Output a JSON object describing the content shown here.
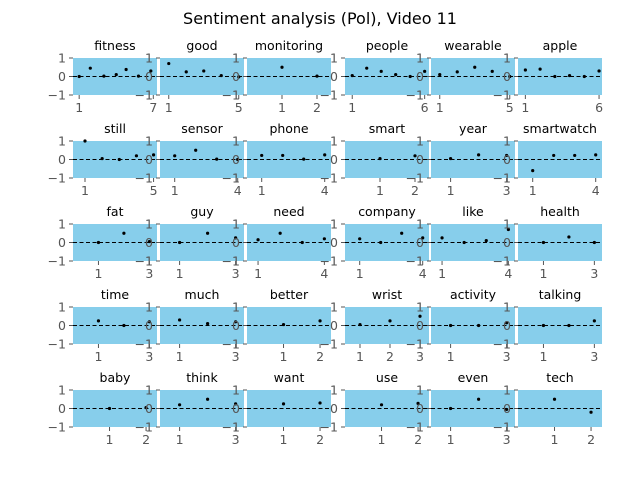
{
  "chart_data": {
    "type": "scatter",
    "title": "Sentiment analysis (Pol), Video 11",
    "ylim": [
      -1,
      1
    ],
    "yticks": [
      -1,
      0,
      1
    ],
    "reference_line": {
      "y": 0,
      "style": "dashed",
      "color": "#000000"
    },
    "colors": {
      "panel_background": "#87ceeb",
      "points": "#000000"
    },
    "grid": false,
    "panels": [
      {
        "title": "fitness",
        "xlim": [
          0.5,
          7.3
        ],
        "xticks": [
          1,
          7
        ],
        "points": [
          [
            1,
            0
          ],
          [
            1.9,
            0.45
          ],
          [
            3,
            0.02
          ],
          [
            4,
            0.1
          ],
          [
            4.8,
            0.38
          ],
          [
            5.8,
            0.02
          ],
          [
            6.8,
            0.3
          ]
        ]
      },
      {
        "title": "good",
        "xlim": [
          0.5,
          5.3
        ],
        "xticks": [
          1,
          5
        ],
        "points": [
          [
            1,
            0.7
          ],
          [
            2,
            0.25
          ],
          [
            3,
            0.3
          ],
          [
            4,
            0.05
          ],
          [
            5,
            -0.02
          ]
        ]
      },
      {
        "title": "monitoring",
        "xlim": [
          0,
          2.4
        ],
        "xticks": [
          1,
          2
        ],
        "points": [
          [
            1,
            0.5
          ],
          [
            2,
            0.02
          ]
        ]
      },
      {
        "title": "people",
        "xlim": [
          0.5,
          6.3
        ],
        "xticks": [
          1,
          6
        ],
        "points": [
          [
            1,
            0.05
          ],
          [
            2,
            0.45
          ],
          [
            3,
            0.28
          ],
          [
            4,
            0.1
          ],
          [
            5,
            0
          ],
          [
            6,
            0.28
          ]
        ]
      },
      {
        "title": "wearable",
        "xlim": [
          0.5,
          5.3
        ],
        "xticks": [
          1,
          5
        ],
        "points": [
          [
            1,
            0.1
          ],
          [
            2,
            0.25
          ],
          [
            3,
            0.5
          ],
          [
            4,
            0.28
          ],
          [
            5,
            0
          ]
        ]
      },
      {
        "title": "apple",
        "xlim": [
          0.5,
          6.2
        ],
        "xticks": [
          1,
          6
        ],
        "points": [
          [
            1,
            0.35
          ],
          [
            2,
            0.4
          ],
          [
            3,
            0
          ],
          [
            4,
            0.05
          ],
          [
            5,
            0
          ],
          [
            6,
            0.3
          ]
        ]
      },
      {
        "title": "still",
        "xlim": [
          0.3,
          5.2
        ],
        "xticks": [
          1,
          5
        ],
        "points": [
          [
            1,
            1
          ],
          [
            2,
            0.05
          ],
          [
            3,
            0
          ],
          [
            4,
            0.2
          ],
          [
            5,
            0.25
          ]
        ]
      },
      {
        "title": "sensor",
        "xlim": [
          0.3,
          4.3
        ],
        "xticks": [
          1,
          4
        ],
        "points": [
          [
            1,
            0.2
          ],
          [
            2,
            0.5
          ],
          [
            3,
            0.02
          ],
          [
            4,
            0
          ]
        ]
      },
      {
        "title": "phone",
        "xlim": [
          0.3,
          4.3
        ],
        "xticks": [
          1,
          4
        ],
        "points": [
          [
            1,
            0.22
          ],
          [
            2,
            0.22
          ],
          [
            3,
            0.02
          ],
          [
            4,
            0.25
          ]
        ]
      },
      {
        "title": "smart",
        "xlim": [
          0,
          2.4
        ],
        "xticks": [
          1,
          2
        ],
        "points": [
          [
            1,
            0.05
          ],
          [
            2,
            0.2
          ]
        ]
      },
      {
        "title": "year",
        "xlim": [
          0.3,
          3.3
        ],
        "xticks": [
          1,
          3
        ],
        "points": [
          [
            1,
            0.05
          ],
          [
            2,
            0.25
          ],
          [
            3,
            0.22
          ]
        ]
      },
      {
        "title": "smartwatch",
        "xlim": [
          0.3,
          4.3
        ],
        "xticks": [
          1,
          4
        ],
        "points": [
          [
            1,
            -0.6
          ],
          [
            2,
            0.22
          ],
          [
            3,
            0.22
          ],
          [
            4,
            0.25
          ]
        ]
      },
      {
        "title": "fat",
        "xlim": [
          0,
          3.3
        ],
        "xticks": [
          1,
          3
        ],
        "points": [
          [
            1,
            0
          ],
          [
            2,
            0.5
          ],
          [
            3,
            0.05
          ]
        ]
      },
      {
        "title": "guy",
        "xlim": [
          0.3,
          3.3
        ],
        "xticks": [
          1,
          3
        ],
        "points": [
          [
            1,
            0
          ],
          [
            2,
            0.5
          ],
          [
            3,
            0.25
          ]
        ]
      },
      {
        "title": "need",
        "xlim": [
          0.5,
          4.3
        ],
        "xticks": [
          1,
          4
        ],
        "points": [
          [
            1,
            0.15
          ],
          [
            2,
            0.5
          ],
          [
            3,
            0
          ],
          [
            4,
            0.2
          ]
        ]
      },
      {
        "title": "company",
        "xlim": [
          0.3,
          4.3
        ],
        "xticks": [
          1,
          4
        ],
        "points": [
          [
            1,
            0.2
          ],
          [
            2,
            0
          ],
          [
            3,
            0.5
          ],
          [
            4,
            0.25
          ]
        ]
      },
      {
        "title": "like",
        "xlim": [
          0.5,
          4.3
        ],
        "xticks": [
          1,
          4
        ],
        "points": [
          [
            1,
            0.25
          ],
          [
            2,
            0
          ],
          [
            3,
            0.1
          ],
          [
            4,
            0.7
          ]
        ]
      },
      {
        "title": "health",
        "xlim": [
          0,
          3.3
        ],
        "xticks": [
          1,
          3
        ],
        "points": [
          [
            1,
            0
          ],
          [
            2,
            0.3
          ],
          [
            3,
            0
          ]
        ]
      },
      {
        "title": "time",
        "xlim": [
          0,
          3.3
        ],
        "xticks": [
          1,
          3
        ],
        "points": [
          [
            1,
            0.25
          ],
          [
            2,
            0
          ],
          [
            3,
            0.2
          ]
        ]
      },
      {
        "title": "much",
        "xlim": [
          0.3,
          3.3
        ],
        "xticks": [
          1,
          3
        ],
        "points": [
          [
            1,
            0.3
          ],
          [
            2,
            0.1
          ],
          [
            3,
            0.2
          ]
        ]
      },
      {
        "title": "better",
        "xlim": [
          0,
          2.3
        ],
        "xticks": [
          1,
          2
        ],
        "points": [
          [
            1,
            0.05
          ],
          [
            2,
            0.25
          ]
        ]
      },
      {
        "title": "wrist",
        "xlim": [
          0.5,
          3.3
        ],
        "xticks": [
          1,
          2,
          3
        ],
        "points": [
          [
            1,
            0.05
          ],
          [
            2,
            0.25
          ],
          [
            3,
            0.5
          ]
        ]
      },
      {
        "title": "activity",
        "xlim": [
          0.3,
          3.3
        ],
        "xticks": [
          1,
          3
        ],
        "points": [
          [
            1,
            0
          ],
          [
            2,
            0
          ],
          [
            3,
            0.15
          ]
        ]
      },
      {
        "title": "talking",
        "xlim": [
          0,
          3.3
        ],
        "xticks": [
          1,
          3
        ],
        "points": [
          [
            1,
            0
          ],
          [
            2,
            0
          ],
          [
            3,
            0.25
          ]
        ]
      },
      {
        "title": "baby",
        "xlim": [
          0,
          2.3
        ],
        "xticks": [
          1,
          2
        ],
        "points": [
          [
            1,
            0
          ],
          [
            2,
            0.05
          ]
        ]
      },
      {
        "title": "think",
        "xlim": [
          0.3,
          3.3
        ],
        "xticks": [
          1,
          3
        ],
        "points": [
          [
            1,
            0.2
          ],
          [
            2,
            0.5
          ],
          [
            3,
            0.25
          ]
        ]
      },
      {
        "title": "want",
        "xlim": [
          0,
          2.3
        ],
        "xticks": [
          1,
          2
        ],
        "points": [
          [
            1,
            0.25
          ],
          [
            2,
            0.3
          ]
        ]
      },
      {
        "title": "use",
        "xlim": [
          0,
          2.3
        ],
        "xticks": [
          1,
          2
        ],
        "points": [
          [
            1,
            0.2
          ],
          [
            2,
            0.28
          ]
        ]
      },
      {
        "title": "even",
        "xlim": [
          0.3,
          3.3
        ],
        "xticks": [
          1,
          3
        ],
        "points": [
          [
            1,
            0
          ],
          [
            2,
            0.5
          ],
          [
            3,
            -0.05
          ]
        ]
      },
      {
        "title": "tech",
        "xlim": [
          0,
          2.3
        ],
        "xticks": [
          1,
          2
        ],
        "points": [
          [
            1,
            0.5
          ],
          [
            2,
            -0.2
          ]
        ]
      }
    ]
  }
}
